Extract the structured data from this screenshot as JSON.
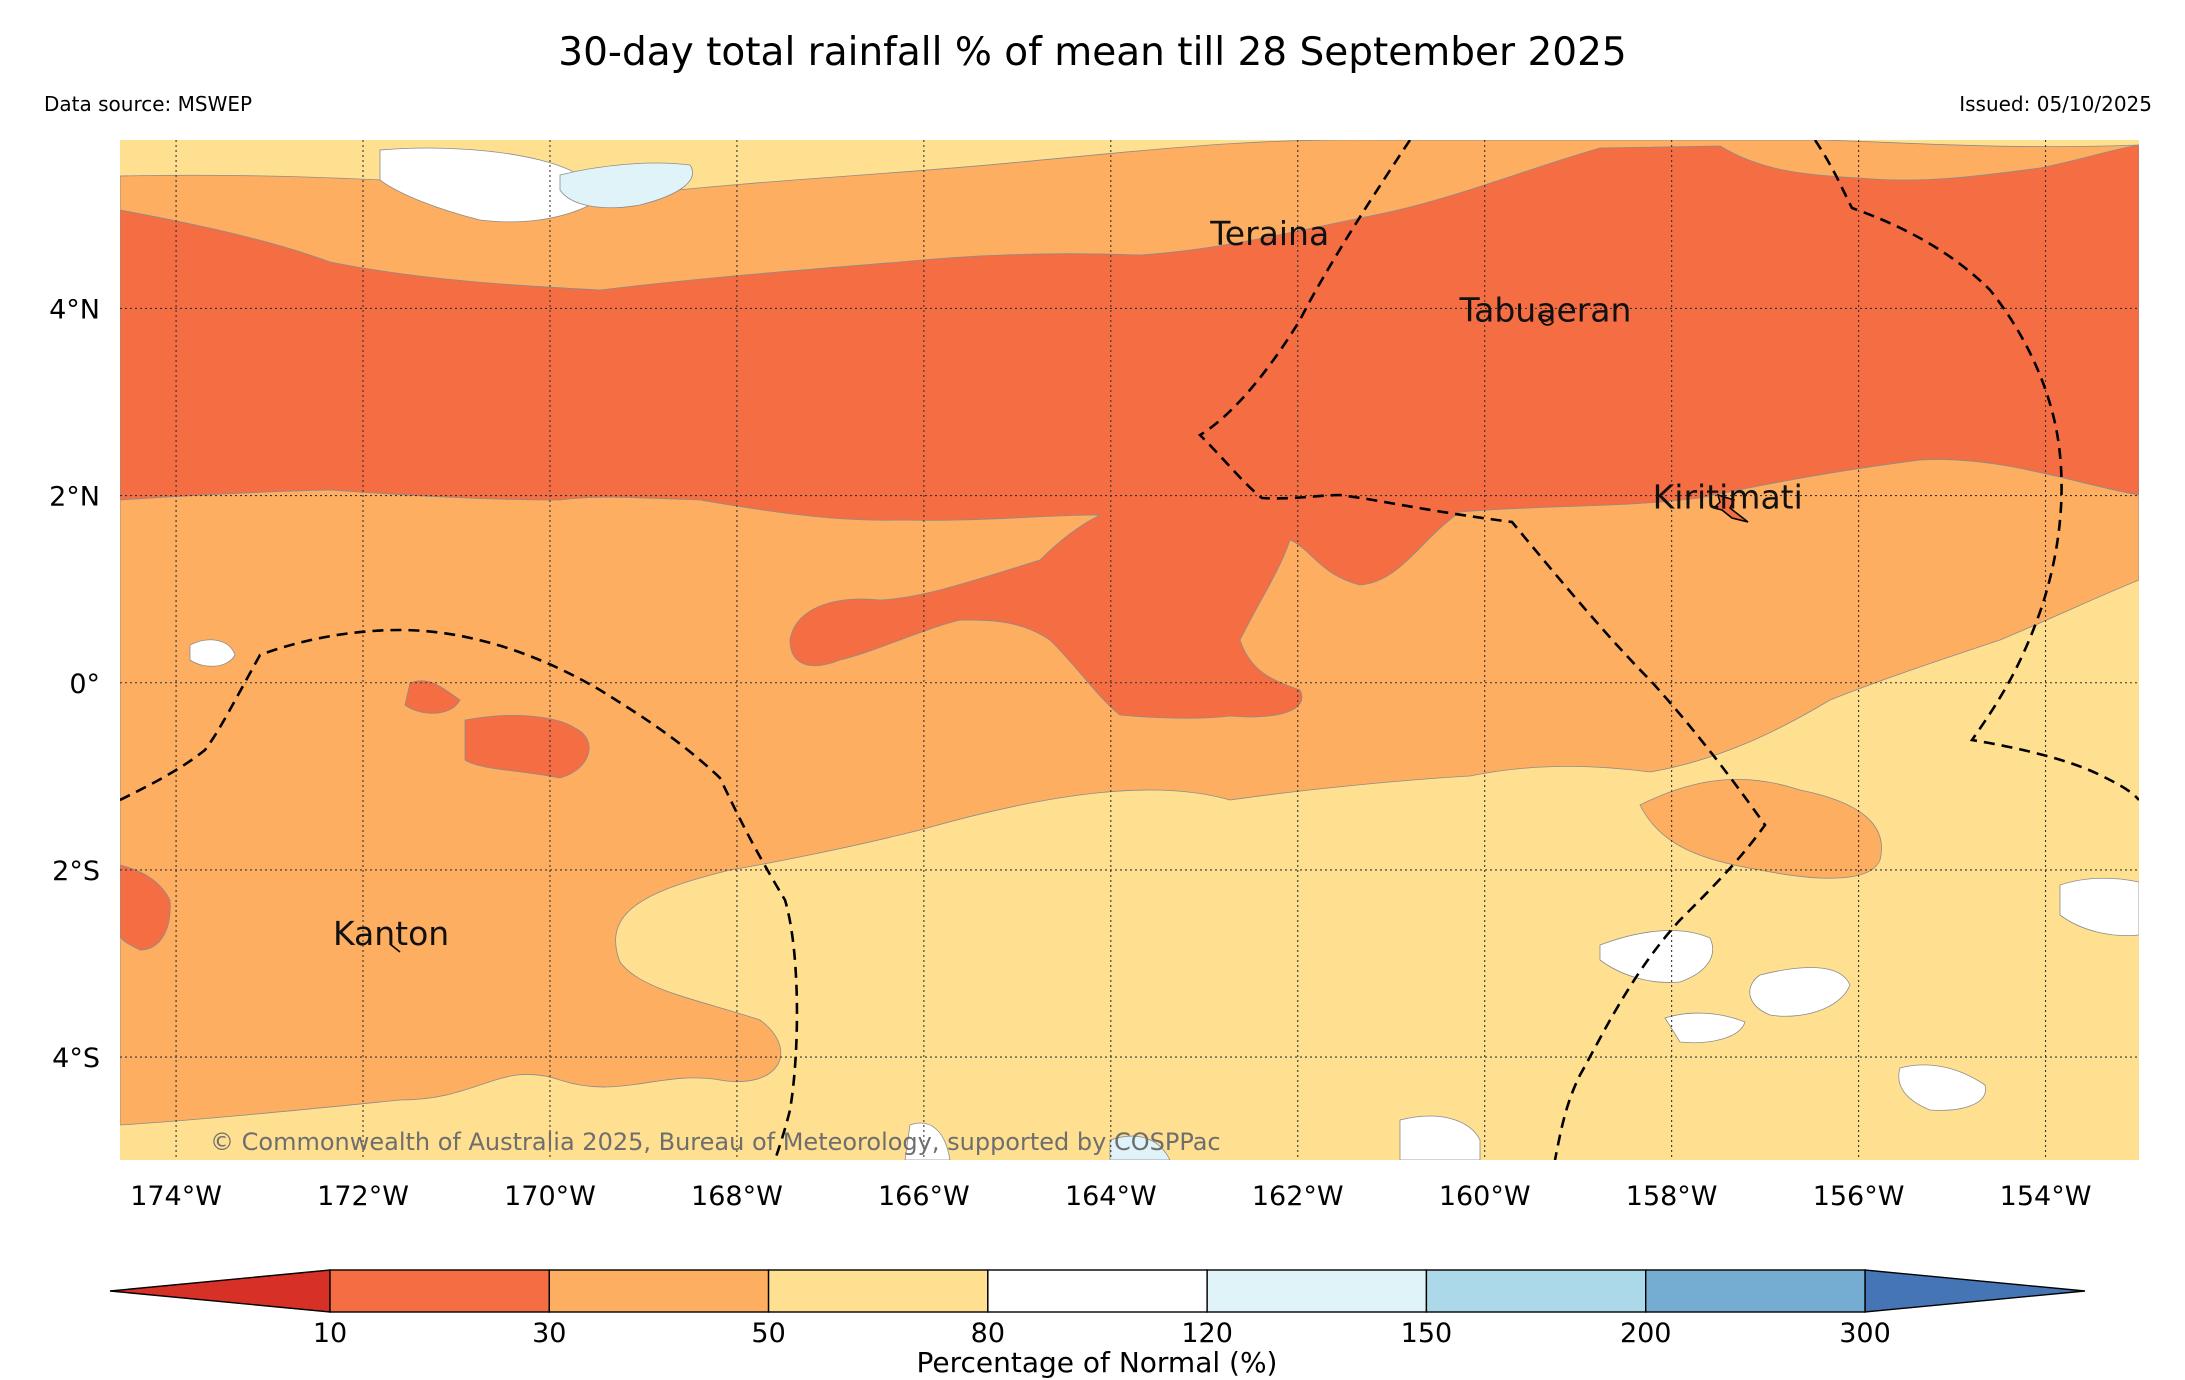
{
  "title": "30-day total rainfall % of mean till 28 September 2025",
  "data_source": "Data source: MSWEP",
  "issued": "Issued: 05/10/2025",
  "copyright": "© Commonwealth of Australia 2025, Bureau of Meteorology, supported by COSPPac",
  "map": {
    "lon_range": [
      -174.6,
      -153.0
    ],
    "lat_range": [
      -5.1,
      5.8
    ],
    "lon_ticks": [
      {
        "value": -174,
        "label": "174°W"
      },
      {
        "value": -172,
        "label": "172°W"
      },
      {
        "value": -170,
        "label": "170°W"
      },
      {
        "value": -168,
        "label": "168°W"
      },
      {
        "value": -166,
        "label": "166°W"
      },
      {
        "value": -164,
        "label": "164°W"
      },
      {
        "value": -162,
        "label": "162°W"
      },
      {
        "value": -160,
        "label": "160°W"
      },
      {
        "value": -158,
        "label": "158°W"
      },
      {
        "value": -156,
        "label": "156°W"
      },
      {
        "value": -154,
        "label": "154°W"
      }
    ],
    "lat_ticks": [
      {
        "value": 4,
        "label": "4°N"
      },
      {
        "value": 2,
        "label": "2°N"
      },
      {
        "value": 0,
        "label": "0°"
      },
      {
        "value": -2,
        "label": "2°S"
      },
      {
        "value": -4,
        "label": "4°S"
      }
    ],
    "places": [
      {
        "name": "Teraina",
        "lon": -162.3,
        "lat": 4.68
      },
      {
        "name": "Tabuaeran",
        "lon": -159.35,
        "lat": 3.86
      },
      {
        "name": "Kiritimati",
        "lon": -157.4,
        "lat": 1.86
      },
      {
        "name": "Kanton",
        "lon": -171.7,
        "lat": -2.8
      }
    ]
  },
  "colorbar": {
    "label": "Percentage of Normal (%)",
    "ticks": [
      "10",
      "30",
      "50",
      "80",
      "120",
      "150",
      "200",
      "300"
    ],
    "under_color": "#d73027",
    "over_color": "#4575b4",
    "colors": [
      "#f46d43",
      "#fdae61",
      "#fee090",
      "#ffffff",
      "#e0f3f8",
      "#abd9e9",
      "#74add1"
    ]
  },
  "legend_colors": {
    "10-30": "#f46d43",
    "30-50": "#fdae61",
    "50-80": "#fee090",
    "80-120": "#ffffff",
    "120-150": "#e0f3f8"
  }
}
